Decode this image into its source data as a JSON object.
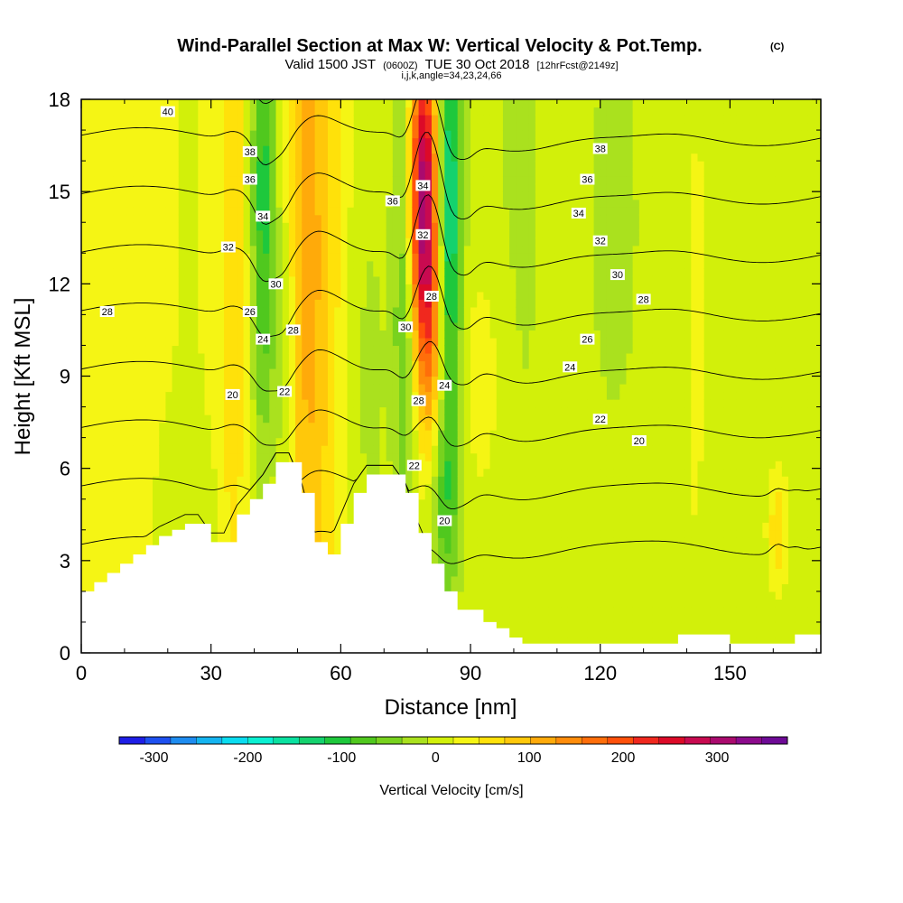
{
  "title": "Wind-Parallel Section at Max W: Vertical Velocity & Pot.Temp.",
  "copyright": "(C)",
  "subtitle": {
    "valid": "Valid 1500 JST",
    "utc": "(0600Z)",
    "date": "TUE 30 Oct 2018",
    "forecast": "[12hrFcst@2149z]",
    "indices": "i,j,k,angle=34,23,24,66"
  },
  "colors": {
    "terrain": "#ffffff",
    "contour": "#000000",
    "axis": "#000000",
    "label_box": "#ffffff"
  },
  "chart_data": {
    "type": "heatmap",
    "title": "Wind-Parallel Section at Max W: Vertical Velocity & Pot.Temp.",
    "xlabel": "Distance [nm]",
    "ylabel": "Height [Kft MSL]",
    "xlim": [
      0,
      171
    ],
    "ylim": [
      0,
      18
    ],
    "xticks": [
      0,
      30,
      60,
      90,
      120,
      150
    ],
    "yticks": [
      0,
      3,
      6,
      9,
      12,
      15,
      18
    ],
    "grid": false,
    "colorbar": {
      "label": "Vertical Velocity [cm/s]",
      "ticks": [
        -300,
        -200,
        -100,
        0,
        100,
        200,
        300
      ],
      "range": [
        -337,
        375
      ],
      "colors": [
        "#1e1ee6",
        "#1e50f0",
        "#1e8cf0",
        "#14b4f0",
        "#0adcf0",
        "#0af0d2",
        "#0ae1a0",
        "#14d26e",
        "#1ec83c",
        "#50c81e",
        "#78d21e",
        "#aae11e",
        "#d2f00a",
        "#f5f514",
        "#ffe10a",
        "#ffc80a",
        "#ffaa0a",
        "#ff8c0a",
        "#ff6e0a",
        "#ff500a",
        "#f0281e",
        "#dc0a28",
        "#c80a50",
        "#aa0a6e",
        "#8c0a8c",
        "#6e0a96"
      ]
    },
    "terrain": {
      "x": [
        0,
        3,
        6,
        9,
        12,
        15,
        18,
        21,
        24,
        27,
        30,
        33,
        36,
        39,
        42,
        45,
        48,
        51,
        54,
        57,
        60,
        63,
        66,
        69,
        72,
        75,
        78,
        81,
        84,
        87,
        90,
        93,
        96,
        99,
        102,
        105,
        108,
        111,
        114,
        117,
        120,
        123,
        126,
        129,
        132,
        135,
        138,
        141,
        144,
        147,
        150,
        153,
        156,
        159,
        162,
        165,
        168,
        171
      ],
      "height": [
        2.0,
        2.3,
        2.6,
        2.9,
        3.2,
        3.5,
        3.8,
        4.0,
        4.2,
        4.2,
        3.6,
        3.6,
        4.5,
        5.0,
        5.5,
        6.2,
        6.2,
        5.2,
        3.6,
        3.2,
        4.2,
        5.2,
        5.8,
        5.8,
        5.8,
        5.2,
        3.9,
        2.9,
        2.0,
        1.4,
        1.4,
        1.0,
        0.8,
        0.5,
        0.3,
        0.3,
        0.3,
        0.3,
        0.3,
        0.3,
        0.3,
        0.3,
        0.3,
        0.3,
        0.3,
        0.3,
        0.6,
        0.6,
        0.6,
        0.6,
        0.3,
        0.3,
        0.3,
        0.3,
        0.3,
        0.6,
        0.6,
        0.6
      ]
    },
    "w_features": [
      {
        "x": 0,
        "y": 13,
        "w": 15,
        "sx": 60,
        "sy": 400
      },
      {
        "x": 35,
        "y": 12,
        "w": 50,
        "sx": 2.5,
        "sy": 12
      },
      {
        "x": 42,
        "y": 15,
        "w": -120,
        "sx": 2.0,
        "sy": 6
      },
      {
        "x": 47,
        "y": 10,
        "w": -50,
        "sx": 2.0,
        "sy": 4
      },
      {
        "x": 52,
        "y": 13,
        "w": 90,
        "sx": 3.5,
        "sy": 10
      },
      {
        "x": 58,
        "y": 12,
        "w": 30,
        "sx": 4.0,
        "sy": 12
      },
      {
        "x": 66,
        "y": 9,
        "w": -30,
        "sx": 4.0,
        "sy": 6
      },
      {
        "x": 75,
        "y": 12,
        "w": -90,
        "sx": 2.0,
        "sy": 6
      },
      {
        "x": 79,
        "y": 15,
        "w": 300,
        "sx": 2.4,
        "sy": 3.5
      },
      {
        "x": 81,
        "y": 10,
        "w": 110,
        "sx": 2.6,
        "sy": 3
      },
      {
        "x": 85,
        "y": 14,
        "w": -170,
        "sx": 2.0,
        "sy": 5
      },
      {
        "x": 84,
        "y": 5,
        "w": -80,
        "sx": 2.5,
        "sy": 2.5
      },
      {
        "x": 93,
        "y": 9,
        "w": 35,
        "sx": 3.5,
        "sy": 3
      },
      {
        "x": 100,
        "y": 14,
        "w": -20,
        "sx": 8,
        "sy": 12
      },
      {
        "x": 125,
        "y": 14,
        "w": -25,
        "sx": 7,
        "sy": 8
      },
      {
        "x": 140,
        "y": 12,
        "w": 15,
        "sx": 10,
        "sy": 20
      },
      {
        "x": 161,
        "y": 4,
        "w": 60,
        "sx": 1.5,
        "sy": 1.3
      },
      {
        "x": 30,
        "y": 4,
        "w": -15,
        "sx": 5,
        "sy": 2
      }
    ],
    "theta_contours": [
      20,
      22,
      24,
      26,
      28,
      30,
      32,
      34,
      36,
      38,
      40
    ],
    "contour_labels": [
      {
        "text": "40",
        "x": 20,
        "y": 17.6
      },
      {
        "text": "38",
        "x": 39,
        "y": 16.3
      },
      {
        "text": "36",
        "x": 39,
        "y": 15.4
      },
      {
        "text": "34",
        "x": 42,
        "y": 14.2
      },
      {
        "text": "32",
        "x": 34,
        "y": 13.2
      },
      {
        "text": "30",
        "x": 45,
        "y": 12.0
      },
      {
        "text": "28",
        "x": 6,
        "y": 11.1
      },
      {
        "text": "26",
        "x": 39,
        "y": 11.1
      },
      {
        "text": "28",
        "x": 49,
        "y": 10.5
      },
      {
        "text": "24",
        "x": 42,
        "y": 10.2
      },
      {
        "text": "22",
        "x": 47,
        "y": 8.5
      },
      {
        "text": "20",
        "x": 35,
        "y": 8.4
      },
      {
        "text": "36",
        "x": 72,
        "y": 14.7
      },
      {
        "text": "34",
        "x": 79,
        "y": 15.2
      },
      {
        "text": "32",
        "x": 79,
        "y": 13.6
      },
      {
        "text": "28",
        "x": 81,
        "y": 11.6
      },
      {
        "text": "30",
        "x": 75,
        "y": 10.6
      },
      {
        "text": "24",
        "x": 84,
        "y": 8.7
      },
      {
        "text": "28",
        "x": 78,
        "y": 8.2
      },
      {
        "text": "22",
        "x": 77,
        "y": 6.1
      },
      {
        "text": "20",
        "x": 84,
        "y": 4.3
      },
      {
        "text": "38",
        "x": 120,
        "y": 16.4
      },
      {
        "text": "36",
        "x": 117,
        "y": 15.4
      },
      {
        "text": "34",
        "x": 115,
        "y": 14.3
      },
      {
        "text": "32",
        "x": 120,
        "y": 13.4
      },
      {
        "text": "30",
        "x": 124,
        "y": 12.3
      },
      {
        "text": "28",
        "x": 130,
        "y": 11.5
      },
      {
        "text": "26",
        "x": 117,
        "y": 10.2
      },
      {
        "text": "24",
        "x": 113,
        "y": 9.3
      },
      {
        "text": "22",
        "x": 120,
        "y": 7.6
      },
      {
        "text": "20",
        "x": 129,
        "y": 6.9
      }
    ]
  }
}
